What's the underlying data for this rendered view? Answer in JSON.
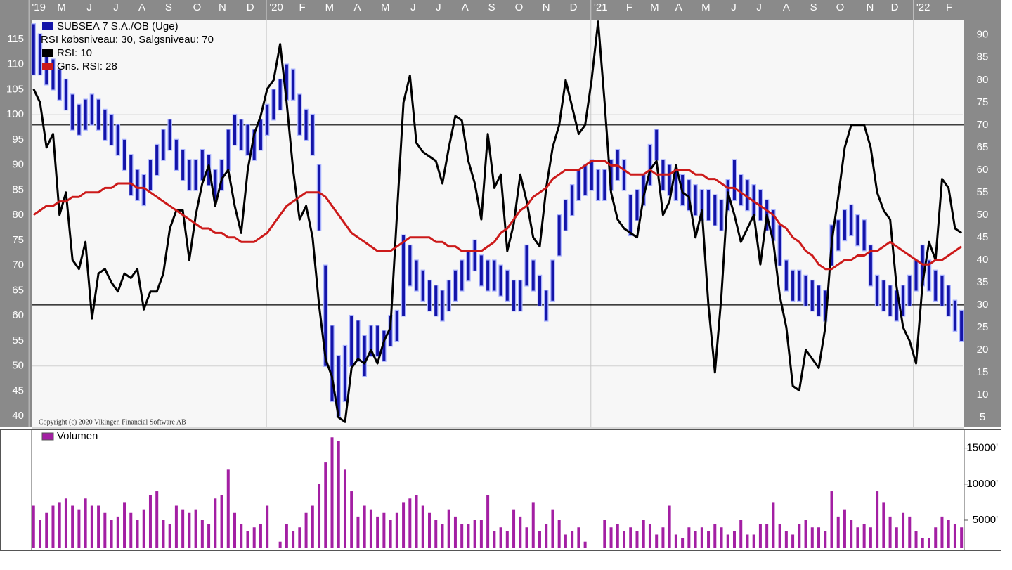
{
  "chart_data": [
    {
      "type": "ohlc",
      "title": "SUBSEA 7 S.A./OB (Uge)",
      "annotation": "RSI købsniveau: 30, Salgsniveau: 70",
      "rsi_levels": [
        30,
        70
      ],
      "copyright": "Copyright (c) 2020 Vikingen Financial Software AB",
      "xlim": [
        -0.3,
        143.2
      ],
      "xticks": [
        {
          "value": 0.8,
          "label": "'19"
        },
        {
          "value": 4.3,
          "label": "M"
        },
        {
          "value": 8.6,
          "label": "J"
        },
        {
          "value": 12.7,
          "label": "J"
        },
        {
          "value": 16.7,
          "label": "A"
        },
        {
          "value": 20.8,
          "label": "S"
        },
        {
          "value": 25.2,
          "label": "O"
        },
        {
          "value": 29.1,
          "label": "N"
        },
        {
          "value": 33.4,
          "label": "D"
        },
        {
          "value": 37.4,
          "label": "'20"
        },
        {
          "value": 41.4,
          "label": "F"
        },
        {
          "value": 45.6,
          "label": "M"
        },
        {
          "value": 49.9,
          "label": "A"
        },
        {
          "value": 54.2,
          "label": "M"
        },
        {
          "value": 58.5,
          "label": "J"
        },
        {
          "value": 62.4,
          "label": "J"
        },
        {
          "value": 66.5,
          "label": "A"
        },
        {
          "value": 70.6,
          "label": "S"
        },
        {
          "value": 74.8,
          "label": "O"
        },
        {
          "value": 79.0,
          "label": "N"
        },
        {
          "value": 83.2,
          "label": "D"
        },
        {
          "value": 87.4,
          "label": "'21"
        },
        {
          "value": 91.8,
          "label": "F"
        },
        {
          "value": 95.7,
          "label": "M"
        },
        {
          "value": 99.4,
          "label": "A"
        },
        {
          "value": 103.6,
          "label": "M"
        },
        {
          "value": 107.9,
          "label": "J"
        },
        {
          "value": 111.8,
          "label": "J"
        },
        {
          "value": 116.0,
          "label": "A"
        },
        {
          "value": 120.2,
          "label": "S"
        },
        {
          "value": 124.3,
          "label": "O"
        },
        {
          "value": 128.9,
          "label": "N"
        },
        {
          "value": 132.7,
          "label": "D"
        },
        {
          "value": 137.1,
          "label": "'22"
        },
        {
          "value": 141.1,
          "label": "F"
        }
      ],
      "ylim": [
        37.8,
        118.9
      ],
      "yticks": [
        40,
        45,
        50,
        55,
        60,
        65,
        70,
        75,
        80,
        85,
        90,
        95,
        100,
        105,
        110,
        115
      ],
      "y2lim": [
        2.8,
        93.4
      ],
      "y2ticks": [
        5,
        10,
        15,
        20,
        25,
        30,
        35,
        40,
        45,
        50,
        55,
        60,
        65,
        70,
        75,
        80,
        85,
        90
      ],
      "series": [
        {
          "name": "SUBSEA 7 S.A./OB (Uge)",
          "color": "#1414a8",
          "high": [
            118,
            116,
            112,
            111,
            109,
            107,
            104,
            102,
            103,
            104,
            103,
            101,
            100,
            98,
            95,
            92,
            89,
            88,
            91,
            94,
            97,
            99,
            95,
            93,
            91,
            91,
            93,
            92,
            89,
            91,
            97,
            100,
            99,
            98,
            97,
            99,
            102,
            105,
            107,
            110,
            109,
            104,
            101,
            100,
            90,
            70,
            58,
            52,
            54,
            60,
            59,
            56,
            58,
            58,
            57,
            60,
            61,
            76,
            74,
            71,
            69,
            67,
            66,
            65,
            67,
            69,
            71,
            73,
            75,
            72,
            71,
            71,
            70,
            69,
            67,
            67,
            74,
            71,
            68,
            65,
            71,
            80,
            83,
            86,
            89,
            90,
            91,
            89,
            89,
            91,
            93,
            91,
            84,
            85,
            88,
            94,
            97,
            91,
            90,
            89,
            88,
            87,
            86,
            85,
            85,
            84,
            83,
            87,
            91,
            88,
            87,
            86,
            85,
            83,
            81,
            78,
            71,
            69,
            69,
            68,
            67,
            66,
            65,
            78,
            79,
            81,
            82,
            80,
            79,
            74,
            68,
            67,
            66,
            65,
            66,
            68,
            71,
            74,
            71,
            69,
            68,
            66,
            63,
            61
          ],
          "low": [
            108,
            108,
            106,
            105,
            103,
            101,
            97,
            96,
            97,
            98,
            97,
            95,
            94,
            92,
            89,
            84,
            83,
            82,
            85,
            88,
            91,
            93,
            89,
            87,
            85,
            85,
            87,
            86,
            83,
            85,
            89,
            94,
            93,
            92,
            91,
            93,
            96,
            99,
            101,
            103,
            103,
            96,
            95,
            92,
            77,
            50,
            43,
            40,
            43,
            50,
            51,
            48,
            52,
            52,
            51,
            54,
            55,
            60,
            66,
            65,
            63,
            61,
            60,
            59,
            61,
            63,
            65,
            67,
            69,
            66,
            65,
            65,
            64,
            63,
            61,
            61,
            66,
            65,
            62,
            59,
            63,
            72,
            77,
            80,
            83,
            84,
            85,
            83,
            83,
            85,
            87,
            85,
            76,
            79,
            82,
            86,
            91,
            85,
            84,
            83,
            82,
            81,
            80,
            79,
            79,
            78,
            77,
            81,
            83,
            82,
            81,
            80,
            79,
            77,
            75,
            70,
            65,
            63,
            63,
            62,
            61,
            60,
            59,
            70,
            73,
            75,
            76,
            74,
            73,
            66,
            62,
            61,
            60,
            59,
            60,
            62,
            65,
            66,
            65,
            63,
            62,
            60,
            57,
            55
          ]
        },
        {
          "name": "RSI: 10",
          "color": "#000000",
          "axis": "y2",
          "values": [
            78,
            75,
            65,
            68,
            50,
            55,
            40,
            38,
            44,
            27,
            37,
            38,
            35,
            33,
            37,
            36,
            38,
            29,
            33,
            33,
            37,
            47,
            51,
            51,
            40,
            50,
            57,
            61,
            52,
            58,
            60,
            52,
            46,
            60,
            68,
            72,
            78,
            80,
            88,
            75,
            60,
            49,
            52,
            45,
            30,
            18,
            14,
            5,
            4,
            16,
            18,
            17,
            20,
            17,
            22,
            25,
            50,
            75,
            81,
            66,
            64,
            63,
            62,
            57,
            65,
            72,
            71,
            62,
            57,
            49,
            68,
            56,
            59,
            42,
            48,
            59,
            53,
            45,
            43,
            56,
            65,
            70,
            80,
            74,
            68,
            70,
            80,
            93,
            75,
            55,
            49,
            47,
            46,
            45,
            54,
            60,
            62,
            50,
            53,
            61,
            55,
            54,
            45,
            51,
            30,
            15,
            32,
            55,
            50,
            44,
            47,
            50,
            39,
            50,
            44,
            32,
            25,
            12,
            11,
            20,
            18,
            16,
            25,
            44,
            54,
            65,
            70,
            70,
            70,
            65,
            55,
            51,
            49,
            34,
            25,
            22,
            17,
            35,
            44,
            40,
            58,
            56,
            47,
            46
          ]
        },
        {
          "name": "Gns. RSI: 28",
          "color": "#cc1a1a",
          "axis": "y2",
          "values": [
            50,
            51,
            52,
            52,
            53,
            53,
            54,
            54,
            55,
            55,
            55,
            56,
            56,
            57,
            57,
            57,
            56,
            56,
            55,
            54,
            53,
            52,
            51,
            50,
            49,
            48,
            47,
            47,
            46,
            46,
            45,
            45,
            44,
            44,
            44,
            45,
            46,
            48,
            50,
            52,
            53,
            54,
            55,
            55,
            55,
            54,
            52,
            50,
            48,
            46,
            45,
            44,
            43,
            42,
            42,
            42,
            43,
            44,
            45,
            45,
            45,
            45,
            44,
            44,
            43,
            43,
            42,
            42,
            42,
            42,
            43,
            44,
            46,
            47,
            49,
            51,
            52,
            54,
            55,
            56,
            58,
            59,
            60,
            60,
            60,
            61,
            62,
            62,
            62,
            61,
            61,
            60,
            59,
            59,
            59,
            60,
            59,
            59,
            59,
            60,
            60,
            60,
            59,
            59,
            58,
            58,
            57,
            56,
            56,
            55,
            54,
            53,
            52,
            51,
            50,
            48,
            47,
            45,
            44,
            42,
            41,
            39,
            38,
            38,
            39,
            40,
            40,
            41,
            41,
            42,
            42,
            43,
            44,
            43,
            42,
            41,
            40,
            39,
            39,
            40,
            40,
            41,
            42,
            43
          ]
        }
      ]
    },
    {
      "type": "bar",
      "xlim": [
        -0.3,
        143.2
      ],
      "ylim": [
        800,
        17600
      ],
      "yticks": [
        {
          "value": 5000,
          "label": "5000'"
        },
        {
          "value": 10000,
          "label": "10000'"
        },
        {
          "value": 15000,
          "label": "15000'"
        }
      ],
      "series": [
        {
          "name": "Volumen",
          "color": "#a31fa3",
          "values": [
            7000,
            5000,
            6000,
            7000,
            7500,
            8000,
            7000,
            6500,
            8000,
            7000,
            7000,
            6000,
            5000,
            5500,
            7500,
            6000,
            5000,
            6500,
            8500,
            9000,
            5000,
            4500,
            7000,
            6500,
            6000,
            6500,
            5000,
            4500,
            8000,
            8500,
            12000,
            6000,
            4500,
            3500,
            4000,
            4500,
            7000,
            1000,
            2000,
            4500,
            3500,
            4000,
            6000,
            7000,
            10000,
            13000,
            16500,
            16000,
            12000,
            9000,
            5500,
            7000,
            6500,
            5500,
            6000,
            5000,
            6000,
            7500,
            8000,
            8500,
            7000,
            6000,
            5000,
            4500,
            6500,
            5500,
            4500,
            4500,
            5000,
            5000,
            8500,
            3500,
            4000,
            3500,
            6500,
            5500,
            4000,
            7500,
            3500,
            4500,
            6500,
            5000,
            3000,
            3500,
            4000,
            2000,
            1000,
            500,
            5000,
            4000,
            4500,
            3500,
            4000,
            3500,
            5000,
            4500,
            3000,
            4000,
            7000,
            3000,
            2500,
            4000,
            3500,
            4000,
            3500,
            4500,
            4000,
            3000,
            3500,
            5000,
            3000,
            3000,
            4500,
            4500,
            7500,
            4500,
            3500,
            3000,
            4500,
            5000,
            4000,
            4000,
            3500,
            9000,
            5500,
            6500,
            5000,
            4000,
            4500,
            4000,
            9000,
            7500,
            5500,
            4000,
            6000,
            5500,
            3500,
            2500,
            2500,
            4000,
            5500,
            5000,
            4500,
            4000
          ]
        }
      ]
    }
  ]
}
